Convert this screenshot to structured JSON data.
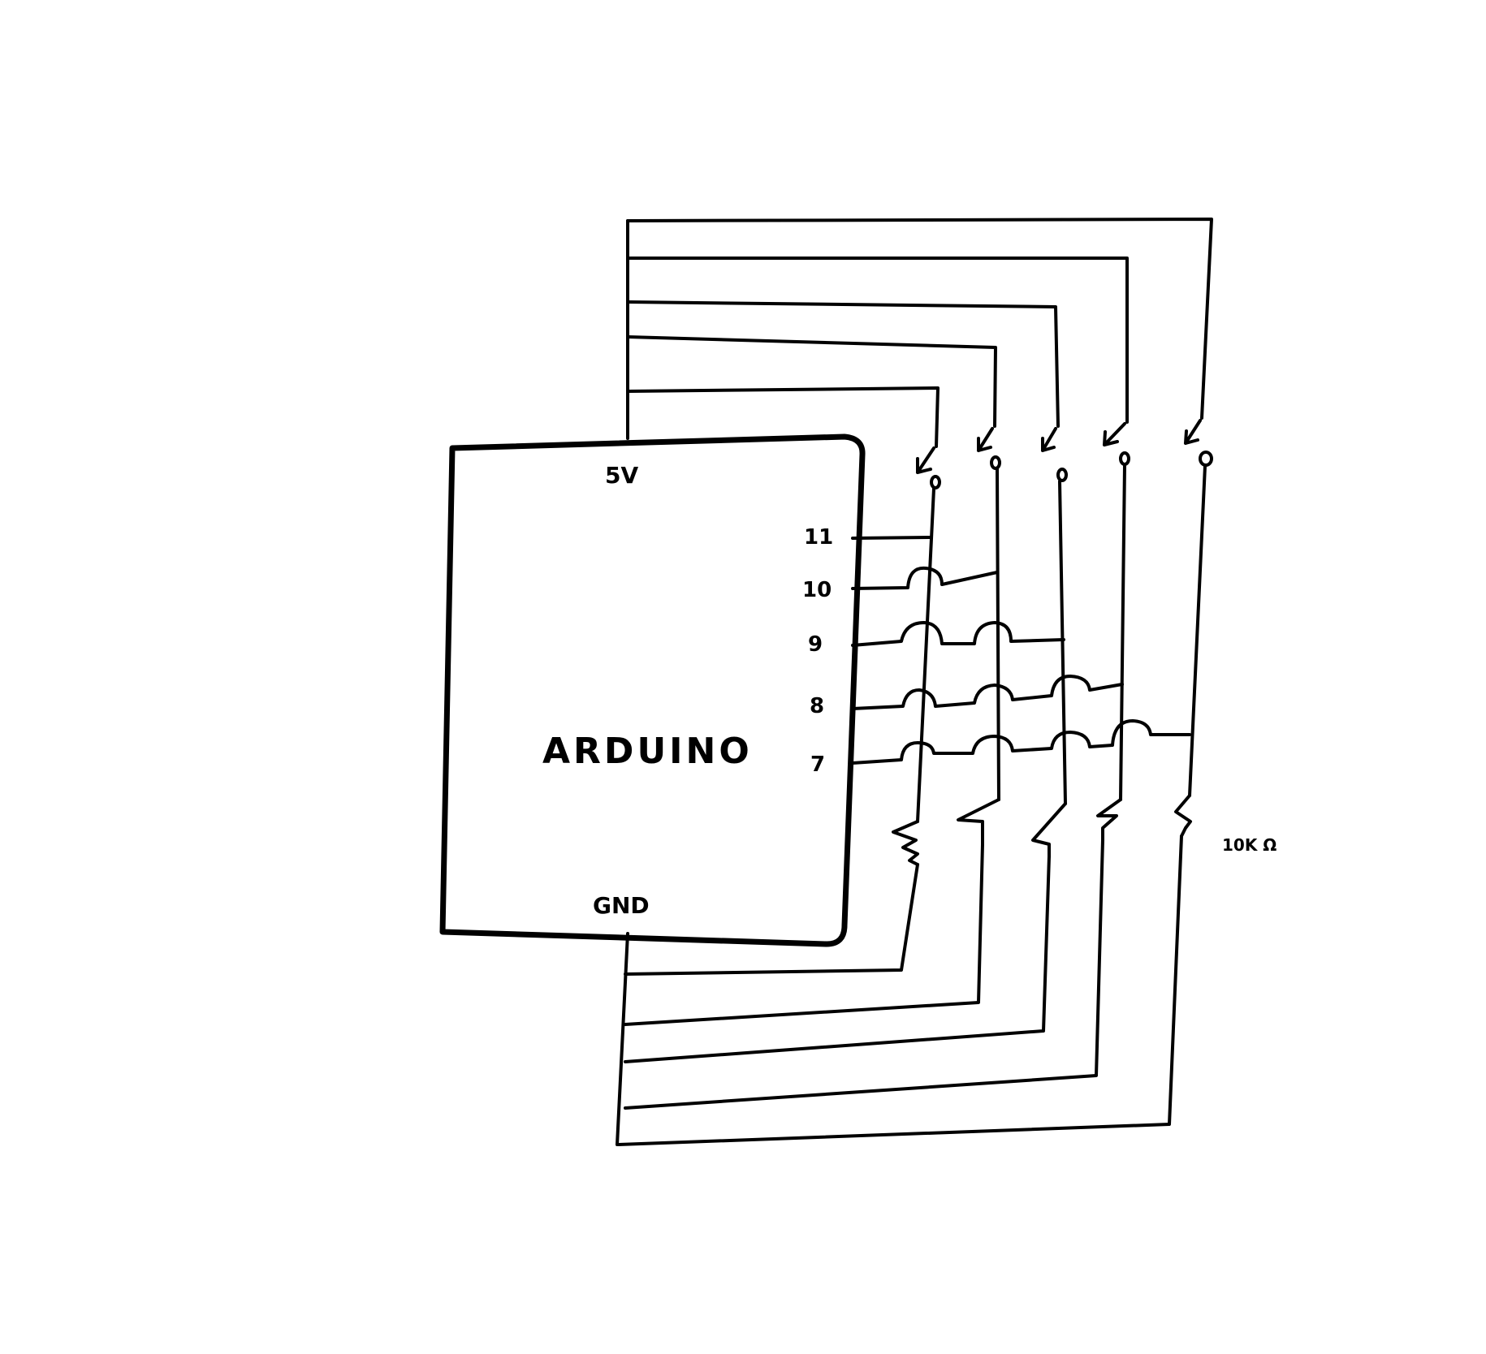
{
  "diagram": {
    "board": {
      "label": "ARDUINO",
      "power_pin": "5V",
      "ground_pin": "GND"
    },
    "pins": [
      "11",
      "10",
      "9",
      "8",
      "7"
    ],
    "resistor_label": "10K Ω",
    "colors": {
      "ink": "#000000",
      "background": "#ffffff"
    }
  }
}
